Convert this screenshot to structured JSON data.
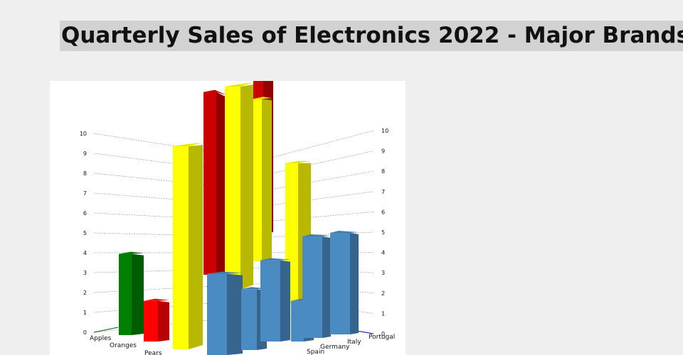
{
  "title": "Quarterly Sales of Electronics 2022 - Major Brands",
  "chart_data": {
    "type": "bar",
    "style": "3d-column",
    "grid": true,
    "yticks": [
      "0",
      "1",
      "2",
      "3",
      "4",
      "5",
      "6",
      "7",
      "8",
      "9",
      "10"
    ],
    "ylim": [
      0,
      10
    ],
    "x_labels": [
      "Apples",
      "Oranges",
      "Pears"
    ],
    "z_labels": [
      "Spain",
      "Germany",
      "Italy",
      "Portugal"
    ],
    "bars": [
      {
        "value": 4,
        "color": "#008000"
      },
      {
        "value": 2,
        "color": "#ff0000"
      },
      {
        "value": 10,
        "color": "#ffff00"
      },
      {
        "value": 9,
        "color": "#cc0000"
      },
      {
        "value": 10,
        "color": "#ffff00"
      },
      {
        "value": 8,
        "color": "#cc0000"
      },
      {
        "value": 8,
        "color": "#ffff00"
      },
      {
        "value": 7,
        "color": "#ffff00"
      },
      {
        "value": 4,
        "color": "#4a8bc2"
      },
      {
        "value": 3,
        "color": "#4a8bc2"
      },
      {
        "value": 4,
        "color": "#4a8bc2"
      },
      {
        "value": 2,
        "color": "#4a8bc2"
      },
      {
        "value": 5,
        "color": "#4a8bc2"
      },
      {
        "value": 5,
        "color": "#4a8bc2"
      }
    ]
  }
}
